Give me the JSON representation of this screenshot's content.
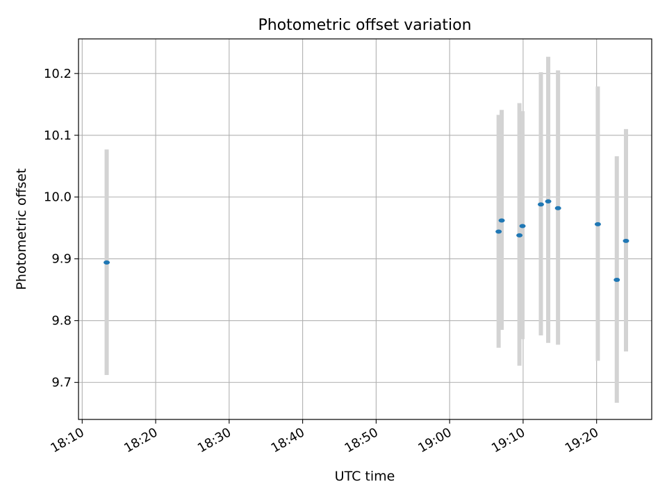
{
  "chart_data": {
    "type": "scatter",
    "title": "Photometric offset variation",
    "xlabel": "UTC time",
    "ylabel": "Photometric offset",
    "x_axis_kind": "time",
    "xlim": [
      "18:09:30",
      "19:27:30"
    ],
    "ylim": [
      9.64,
      10.256
    ],
    "grid": true,
    "x_ticks": [
      "18:10",
      "18:20",
      "18:30",
      "18:40",
      "18:50",
      "19:00",
      "19:10",
      "19:20"
    ],
    "y_ticks": [
      "9.7",
      "9.8",
      "9.9",
      "10.0",
      "10.1",
      "10.2"
    ],
    "error_bar_color": "#d3d3d3",
    "point_color": "#1f77b4",
    "series": [
      {
        "points": [
          {
            "x": "18:13:20",
            "y": 9.894,
            "y_low": 9.712,
            "y_high": 10.077
          },
          {
            "x": "19:06:40",
            "y": 9.944,
            "y_low": 9.756,
            "y_high": 10.133
          },
          {
            "x": "19:07:05",
            "y": 9.962,
            "y_low": 9.785,
            "y_high": 10.141
          },
          {
            "x": "19:09:30",
            "y": 9.938,
            "y_low": 9.727,
            "y_high": 10.152
          },
          {
            "x": "19:09:55",
            "y": 9.953,
            "y_low": 9.77,
            "y_high": 10.139
          },
          {
            "x": "19:12:25",
            "y": 9.988,
            "y_low": 9.776,
            "y_high": 10.202
          },
          {
            "x": "19:13:25",
            "y": 9.993,
            "y_low": 9.764,
            "y_high": 10.227
          },
          {
            "x": "19:14:45",
            "y": 9.982,
            "y_low": 9.761,
            "y_high": 10.205
          },
          {
            "x": "19:20:10",
            "y": 9.956,
            "y_low": 9.735,
            "y_high": 10.179
          },
          {
            "x": "19:22:45",
            "y": 9.866,
            "y_low": 9.667,
            "y_high": 10.066
          },
          {
            "x": "19:24:00",
            "y": 9.929,
            "y_low": 9.75,
            "y_high": 10.11
          }
        ]
      }
    ]
  }
}
